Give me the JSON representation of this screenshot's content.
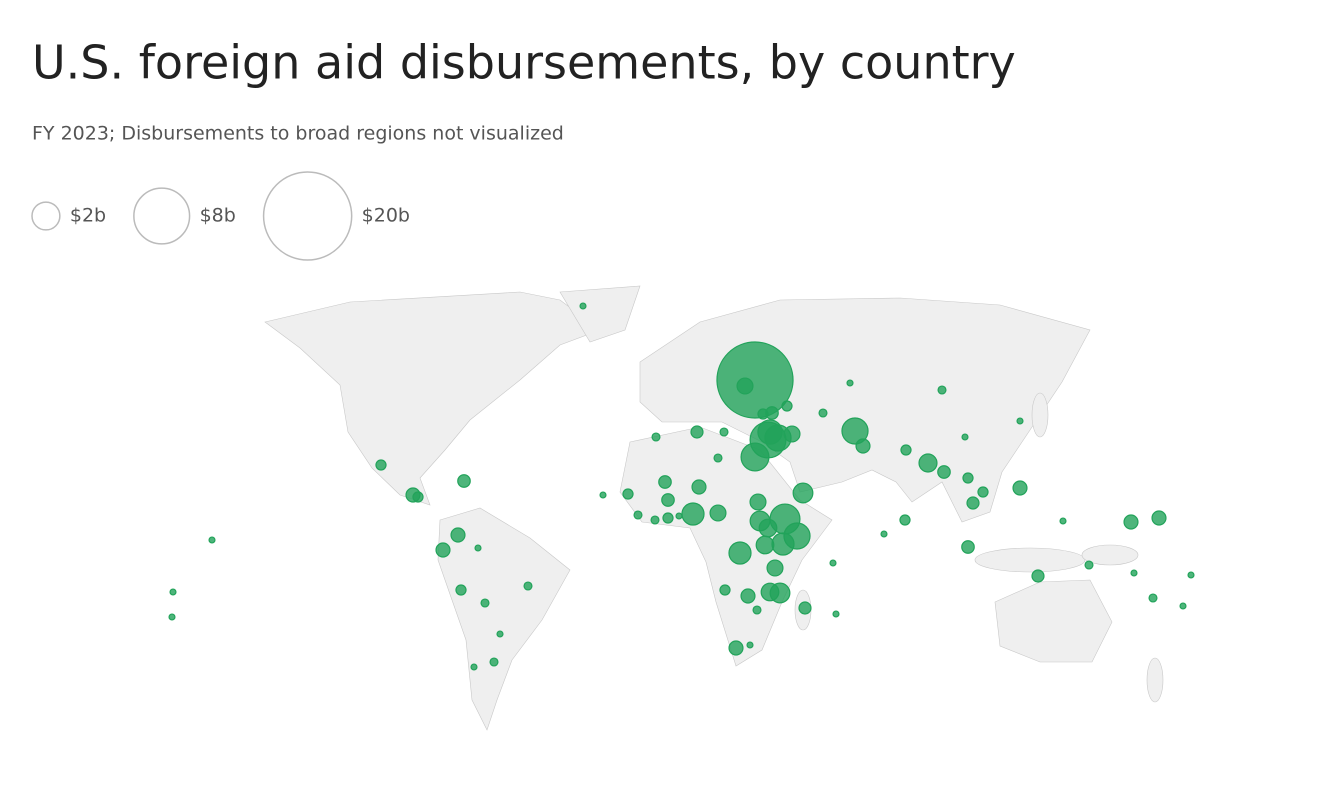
{
  "header": {
    "title": "U.S. foreign aid disbursements, by country",
    "subtitle": "FY 2023; Disbursements to broad regions not visualized"
  },
  "legend": [
    {
      "value": 2,
      "label": "$2b"
    },
    {
      "value": 8,
      "label": "$8b"
    },
    {
      "value": 20,
      "label": "$20b"
    }
  ],
  "bubbles": {
    "color": "#22a35a",
    "values": [
      14.9,
      3.3,
      2,
      1.5,
      1.75,
      0.65,
      0.4,
      1.75,
      0.5,
      2.3,
      1.75,
      1.25,
      1,
      0.65,
      1.25,
      0.8,
      0.8,
      1.25,
      1,
      0.65,
      0.5,
      0.8,
      1,
      0.5,
      0.5,
      0.4,
      0.26,
      0.5,
      0.26,
      0.83,
      0.4,
      0.5,
      0.26,
      0.5,
      0.65,
      0.4,
      0.4,
      0.26,
      0.26,
      0.65,
      0.26,
      0.26,
      0.5,
      0.4,
      0.16,
      0.26,
      0.09,
      0.16,
      0.09,
      0.09,
      0.26,
      0.26,
      0.09,
      0.09,
      0.09,
      0.09,
      0.09,
      0.09,
      0.09,
      0.16,
      0.09,
      0.16,
      0.09,
      0.37,
      0.37,
      0.09,
      0.09,
      0.16,
      0.16,
      0.37,
      0.16,
      0.09,
      0.16,
      0.09,
      0.5,
      0.5,
      0.37,
      0.26,
      0.09,
      0.16,
      0.16,
      0.09,
      0.26,
      0.16,
      0.09,
      0.16,
      0.16,
      0.09
    ]
  }
}
